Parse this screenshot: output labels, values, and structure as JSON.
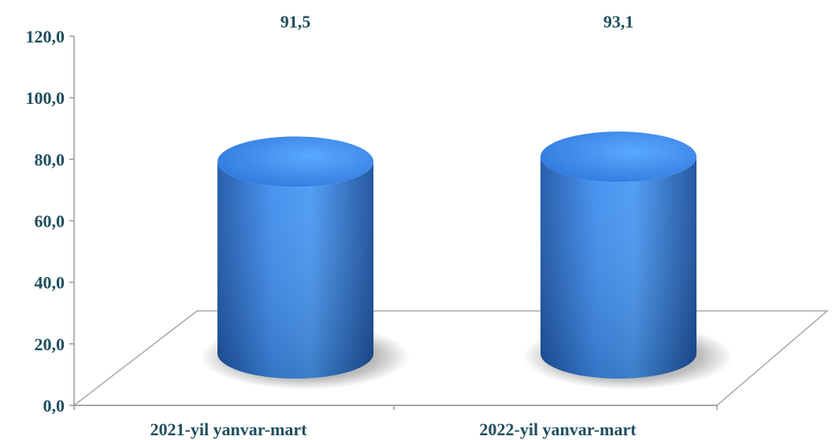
{
  "chart_data": {
    "type": "bar",
    "style": "3d-cylinder",
    "categories": [
      "2021-yil yanvar-mart",
      "2022-yil yanvar-mart"
    ],
    "series": [
      {
        "values": [
          91.5,
          93.1
        ]
      }
    ],
    "data_labels": [
      "91,5",
      "93,1"
    ],
    "yticks": [
      "0,0",
      "20,0",
      "40,0",
      "60,0",
      "80,0",
      "100,0",
      "120,0"
    ],
    "ylim": [
      0,
      120
    ],
    "grid": false,
    "legend": "none",
    "colors": {
      "bar": "#3a86e0",
      "text": "#1f4e5f",
      "axis": "#9a9a9a"
    }
  }
}
